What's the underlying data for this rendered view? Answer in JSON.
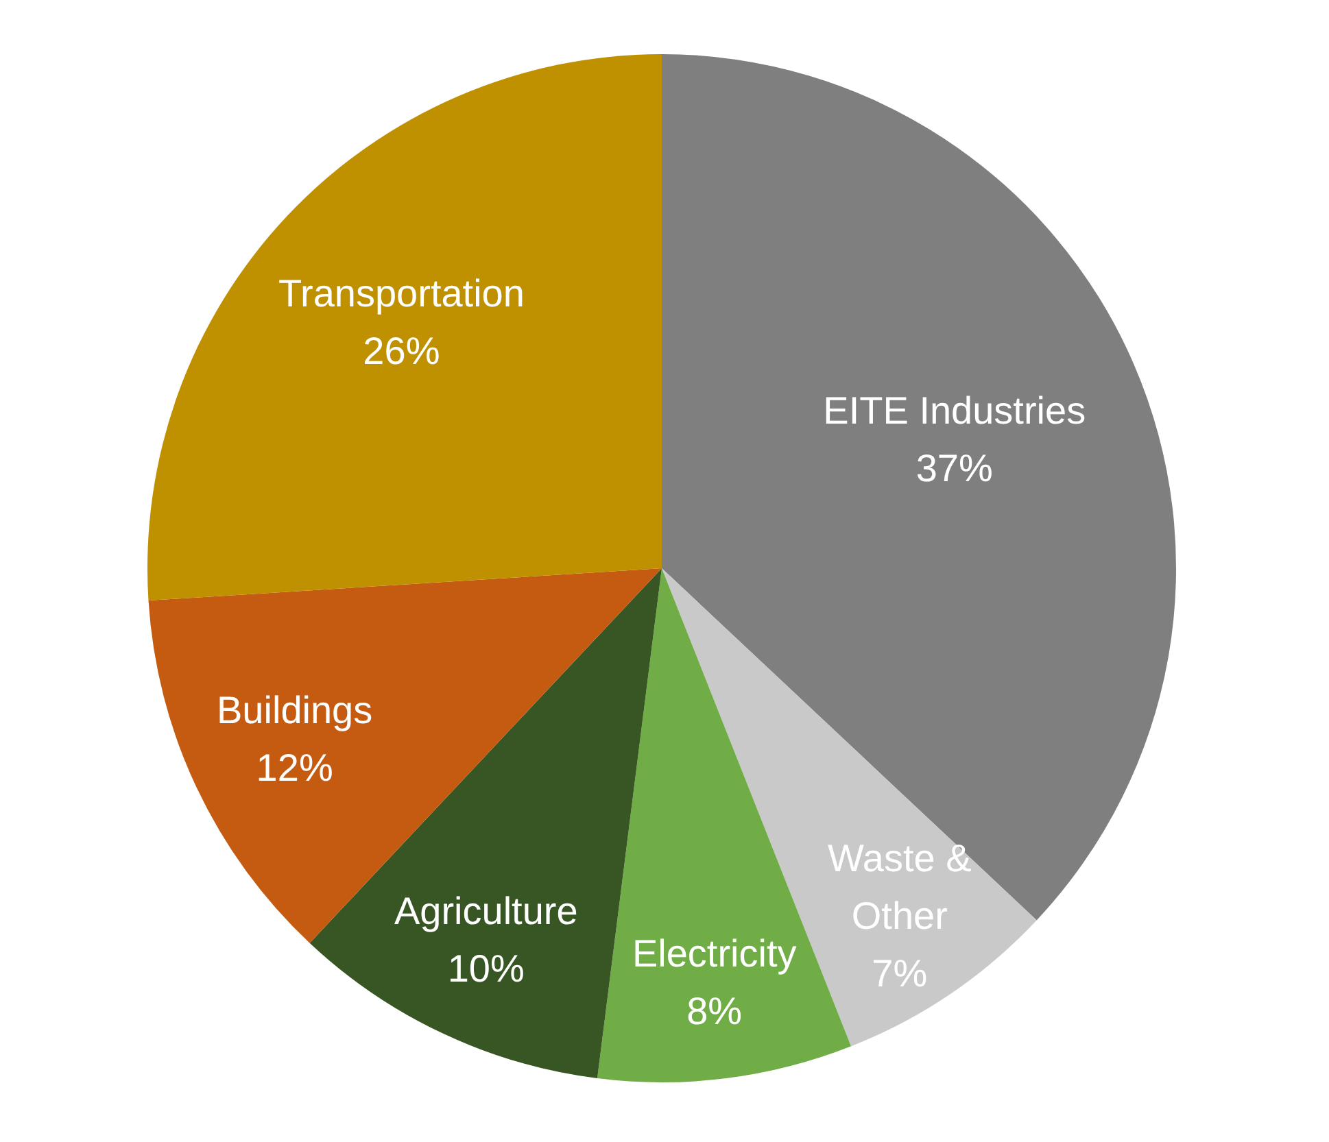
{
  "chart_data": {
    "type": "pie",
    "categories": [
      "EITE Industries",
      "Waste & Other",
      "Electricity",
      "Agriculture",
      "Buildings",
      "Transportation"
    ],
    "values": [
      37,
      7,
      8,
      10,
      12,
      26
    ],
    "colors": [
      "#7f7f7f",
      "#c9c9c9",
      "#70ad47",
      "#375623",
      "#c55a11",
      "#bf9000"
    ],
    "value_labels": [
      "37%",
      "7%",
      "8%",
      "10%",
      "12%",
      "26%"
    ]
  }
}
